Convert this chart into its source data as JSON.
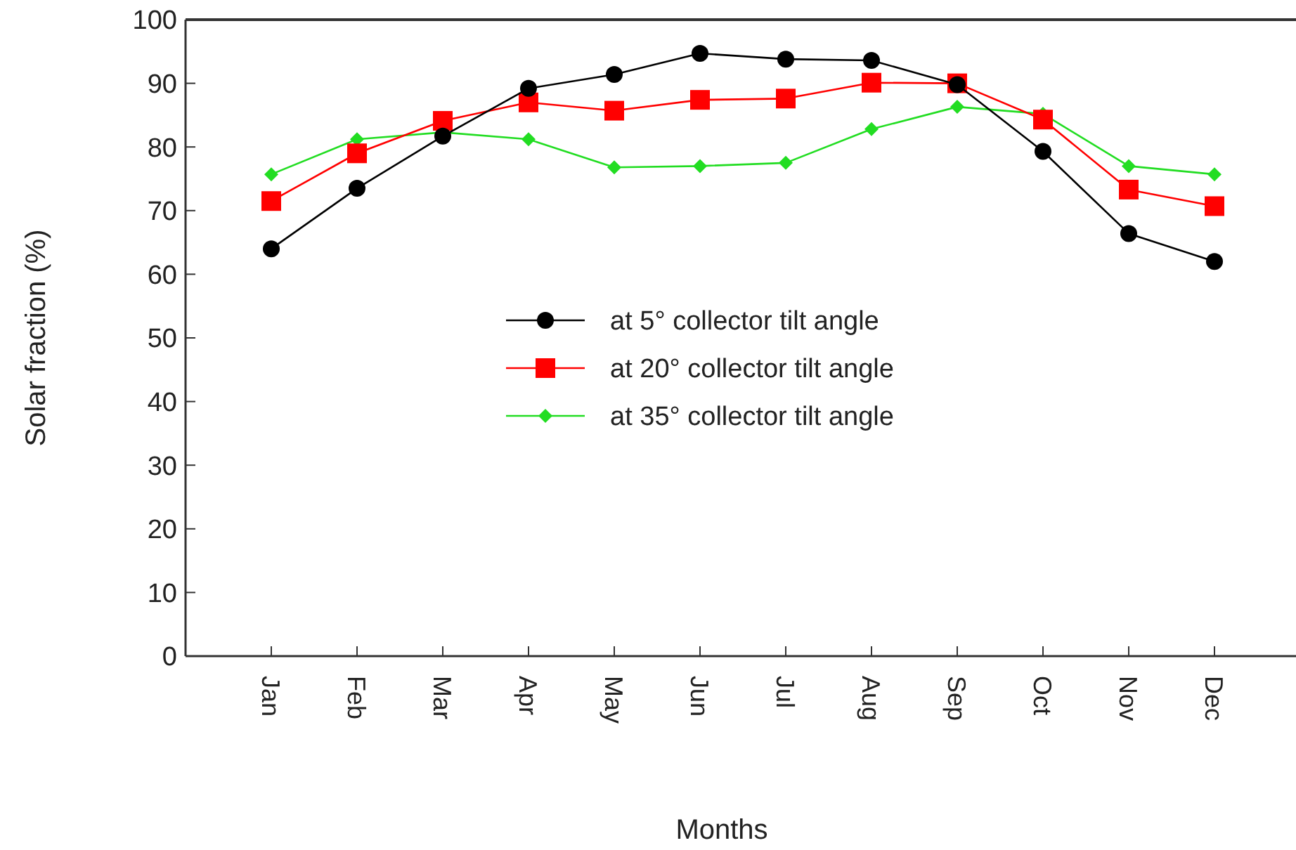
{
  "chart_data": {
    "type": "line",
    "xlabel": "Months",
    "ylabel": "Solar fraction (%)",
    "categories": [
      "Jan",
      "Feb",
      "Mar",
      "Apr",
      "May",
      "Jun",
      "Jul",
      "Aug",
      "Sep",
      "Oct",
      "Nov",
      "Dec"
    ],
    "series": [
      {
        "name": "at 5° collector tilt angle",
        "color": "#000000",
        "marker": "circle",
        "values": [
          64,
          73.5,
          81.7,
          89.2,
          91.4,
          94.7,
          93.8,
          93.6,
          89.8,
          79.3,
          66.4,
          62
        ]
      },
      {
        "name": "at 20° collector tilt angle",
        "color": "#ff0000",
        "marker": "square",
        "values": [
          71.5,
          79,
          84.1,
          87,
          85.7,
          87.4,
          87.6,
          90.1,
          90,
          84.3,
          73.3,
          70.7
        ]
      },
      {
        "name": "at 35° collector tilt angle",
        "color": "#22dd22",
        "marker": "diamond",
        "values": [
          75.7,
          81.2,
          82.3,
          81.2,
          76.8,
          77,
          77.5,
          82.8,
          86.3,
          85.2,
          77,
          75.7
        ]
      }
    ],
    "ylim": [
      0,
      100
    ],
    "yticks": [
      0,
      10,
      20,
      30,
      40,
      50,
      60,
      70,
      80,
      90,
      100
    ],
    "grid": false,
    "legend": "center",
    "line_style": "solid"
  }
}
